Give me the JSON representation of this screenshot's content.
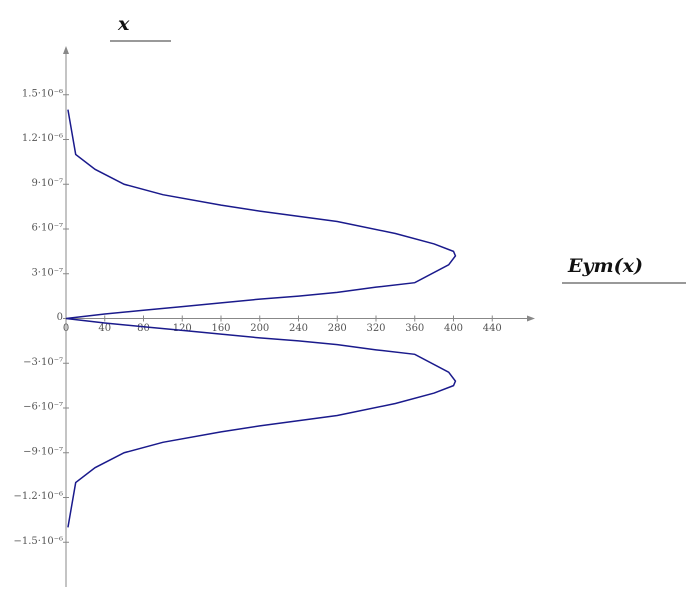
{
  "chart_data": {
    "type": "line",
    "xlabel": "Eym(x)",
    "ylabel": "x",
    "x": [
      2,
      10,
      30,
      60,
      100,
      160,
      200,
      280,
      340,
      380,
      400,
      402,
      395,
      360,
      320,
      280,
      240,
      200,
      160,
      120,
      80,
      40,
      0,
      40,
      80,
      120,
      160,
      200,
      240,
      280,
      320,
      360,
      395,
      402,
      400,
      380,
      340,
      280,
      200,
      160,
      100,
      60,
      30,
      10,
      2
    ],
    "series": [
      {
        "color": "#1a1a8c",
        "values": [
          1.4e-06,
          1.1e-06,
          1e-06,
          9e-07,
          8.3e-07,
          7.6e-07,
          7.2e-07,
          6.5e-07,
          5.7e-07,
          5e-07,
          4.5e-07,
          4.2e-07,
          3.6e-07,
          2.4e-07,
          2.1e-07,
          1.75e-07,
          1.5e-07,
          1.3e-07,
          1.05e-07,
          8e-08,
          5.5e-08,
          3e-08,
          0,
          -3e-08,
          -5.5e-08,
          -8e-08,
          -1.05e-07,
          -1.3e-07,
          -1.5e-07,
          -1.75e-07,
          -2.1e-07,
          -2.4e-07,
          -3.6e-07,
          -4.2e-07,
          -4.5e-07,
          -5e-07,
          -5.7e-07,
          -6.5e-07,
          -7.2e-07,
          -7.6e-07,
          -8.3e-07,
          -9e-07,
          -1e-06,
          -1.1e-06,
          -1.4e-06
        ]
      }
    ],
    "xlim": [
      0,
      480
    ],
    "ylim": [
      -1.8e-06,
      1.8e-06
    ],
    "xticks": [
      0,
      40,
      80,
      120,
      160,
      200,
      240,
      280,
      320,
      360,
      400,
      440
    ],
    "yticks": [
      {
        "value": 1.5e-06,
        "label": "1.5·10⁻⁶"
      },
      {
        "value": 1.2e-06,
        "label": "1.2·10⁻⁶"
      },
      {
        "value": 9e-07,
        "label": "9·10⁻⁷"
      },
      {
        "value": 6e-07,
        "label": "6·10⁻⁷"
      },
      {
        "value": 3e-07,
        "label": "3·10⁻⁷"
      },
      0,
      {
        "value": -3e-07,
        "label": "−3·10⁻⁷"
      },
      {
        "value": -6e-07,
        "label": "−6·10⁻⁷"
      },
      {
        "value": -9e-07,
        "label": "−9·10⁻⁷"
      },
      {
        "value": -1.2e-06,
        "label": "−1.2·10⁻⁶"
      },
      {
        "value": -1.5e-06,
        "label": "−1.5·10⁻⁶"
      }
    ]
  }
}
